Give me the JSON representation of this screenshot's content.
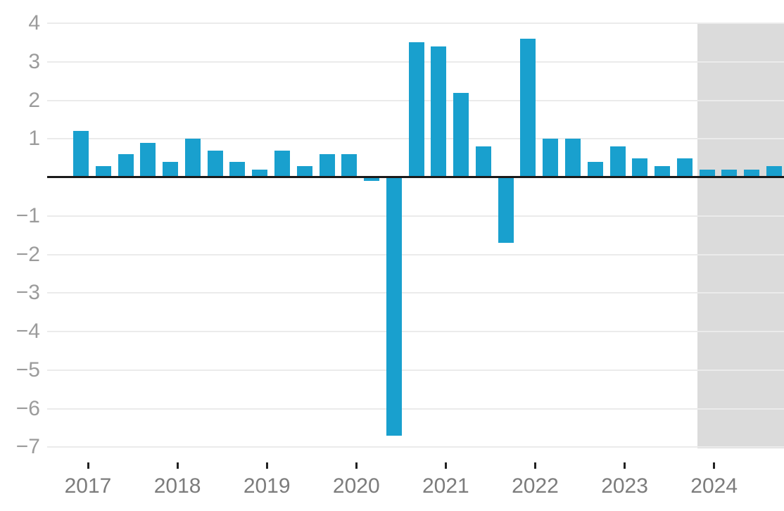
{
  "chart_data": {
    "type": "bar",
    "title": "",
    "xlabel": "",
    "ylabel": "",
    "categories": [
      "2017 Q1",
      "2017 Q2",
      "2017 Q3",
      "2017 Q4",
      "2018 Q1",
      "2018 Q2",
      "2018 Q3",
      "2018 Q4",
      "2019 Q1",
      "2019 Q2",
      "2019 Q3",
      "2019 Q4",
      "2020 Q1",
      "2020 Q2",
      "2020 Q3",
      "2020 Q4",
      "2021 Q1",
      "2021 Q2",
      "2021 Q3",
      "2021 Q4",
      "2022 Q1",
      "2022 Q2",
      "2022 Q3",
      "2022 Q4",
      "2023 Q1",
      "2023 Q2",
      "2023 Q3",
      "2023 Q4",
      "2024 Q1",
      "2024 Q2",
      "2024 Q3",
      "2024 Q4"
    ],
    "values": [
      1.2,
      0.3,
      0.6,
      0.9,
      0.4,
      1.0,
      0.7,
      0.4,
      0.2,
      0.7,
      0.3,
      0.6,
      0.6,
      -0.1,
      -6.7,
      3.5,
      3.4,
      2.2,
      0.8,
      -1.7,
      3.6,
      1.0,
      1.0,
      0.4,
      0.8,
      0.5,
      0.3,
      0.5,
      0.2,
      0.2,
      0.2,
      0.3
    ],
    "forecast_start_index": 28,
    "x_axis": {
      "year_labels": [
        "2017",
        "2018",
        "2019",
        "2020",
        "2021",
        "2022",
        "2023",
        "2024"
      ]
    },
    "y_axis": {
      "min": -7,
      "max": 4,
      "zero_label_hidden": true,
      "ticks": [
        {
          "value": 4,
          "label": "4"
        },
        {
          "value": 3,
          "label": "3"
        },
        {
          "value": 2,
          "label": "2"
        },
        {
          "value": 1,
          "label": "1"
        },
        {
          "value": -1,
          "label": "−1"
        },
        {
          "value": -2,
          "label": "−2"
        },
        {
          "value": -3,
          "label": "−3"
        },
        {
          "value": -4,
          "label": "−4"
        },
        {
          "value": -5,
          "label": "−5"
        },
        {
          "value": -6,
          "label": "−6"
        },
        {
          "value": -7,
          "label": "−7"
        }
      ]
    },
    "grid": "on",
    "legend": "none",
    "colors": {
      "bar": "#19A0CE",
      "forecast_band": "#DBDBDB",
      "gridline": "#EBEBEB",
      "zero_line": "#1A1A1A",
      "tick_mark": "#222222",
      "y_label": "#9B9B9B",
      "x_label": "#7C7C7C",
      "background": "#FFFFFF"
    }
  }
}
